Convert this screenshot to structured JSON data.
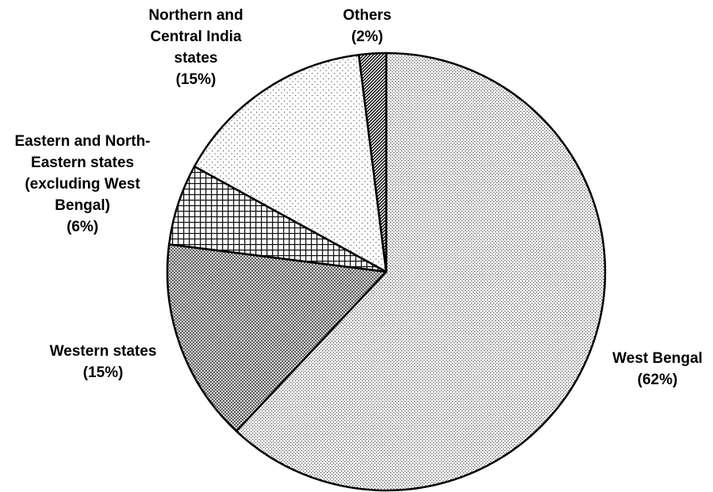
{
  "chart_data": {
    "type": "pie",
    "title": "",
    "start_angle_deg": 0,
    "direction": "clockwise",
    "legend": "none",
    "slices": [
      {
        "name": "West Bengal",
        "value": 62,
        "label_lines": [
          "West Bengal",
          "(62%)"
        ],
        "pattern": "fine-dots"
      },
      {
        "name": "Western states",
        "value": 15,
        "label_lines": [
          "Western states",
          "(15%)"
        ],
        "pattern": "crosshatch-fine"
      },
      {
        "name": "Eastern and North-Eastern states (excluding West Bengal)",
        "value": 6,
        "label_lines": [
          "Eastern and North-",
          "Eastern states",
          "(excluding West",
          "Bengal)",
          "(6%)"
        ],
        "pattern": "grid"
      },
      {
        "name": "Northern and Central India states",
        "value": 15,
        "label_lines": [
          "Northern and",
          "Central India",
          "states",
          "(15%)"
        ],
        "pattern": "sparse-dots"
      },
      {
        "name": "Others",
        "value": 2,
        "label_lines": [
          "Others",
          "(2%)"
        ],
        "pattern": "diagonal-stripes"
      }
    ]
  }
}
